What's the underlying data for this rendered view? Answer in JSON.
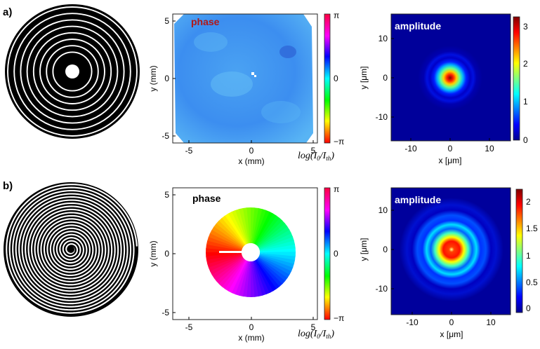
{
  "figure": {
    "rows": [
      {
        "label": "a)",
        "mask": {
          "type": "concentric-rings"
        },
        "phase": {
          "title": "phase",
          "title_color": "#b01818",
          "xlabel": "x (mm)",
          "ylabel": "y (mm)",
          "xticks": [
            "-5",
            "0",
            "5"
          ],
          "yticks": [
            "5",
            "0",
            "-5"
          ],
          "colorbar_ticks": [
            "π",
            "0",
            "−π"
          ],
          "colorbar_label": {
            "prefix": "log(",
            "main_a": "I",
            "sub_a": "0",
            "slash": "/",
            "main_b": "I",
            "sub_b": "th",
            "suffix": ")"
          }
        },
        "amplitude": {
          "title": "amplitude",
          "xlabel": "x [μm]",
          "ylabel": "y [μm]",
          "xticks": [
            "-10",
            "0",
            "10"
          ],
          "yticks": [
            "10",
            "0",
            "-10"
          ],
          "colorbar_ticks": [
            "3",
            "2",
            "1",
            "0"
          ]
        }
      },
      {
        "label": "b)",
        "mask": {
          "type": "spiral"
        },
        "phase": {
          "title": "phase",
          "title_color": "#000000",
          "xlabel": "x (mm)",
          "ylabel": "y (mm)",
          "xticks": [
            "-5",
            "0",
            "5"
          ],
          "yticks": [
            "5",
            "0",
            "-5"
          ],
          "colorbar_ticks": [
            "π",
            "0",
            "−π"
          ],
          "colorbar_label": {
            "prefix": "log(",
            "main_a": "I",
            "sub_a": "0",
            "slash": "/",
            "main_b": "I",
            "sub_b": "th",
            "suffix": ")"
          }
        },
        "amplitude": {
          "title": "amplitude",
          "xlabel": "x [μm]",
          "ylabel": "y [μm]",
          "xticks": [
            "-10",
            "0",
            "10"
          ],
          "yticks": [
            "10",
            "0",
            "-10"
          ],
          "colorbar_ticks": [
            "2",
            "1.5",
            "1",
            "0.5",
            "0"
          ]
        }
      }
    ]
  }
}
